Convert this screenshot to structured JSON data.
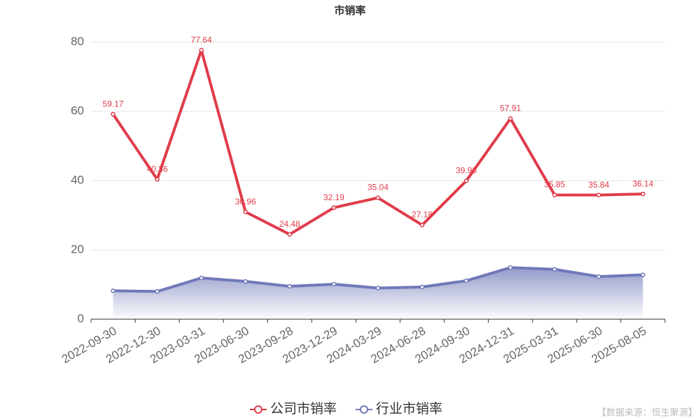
{
  "chart_data": {
    "type": "line",
    "title": "市销率",
    "categories": [
      "2022-09-30",
      "2022-12-30",
      "2023-03-31",
      "2023-06-30",
      "2023-09-28",
      "2023-12-29",
      "2024-03-29",
      "2024-06-28",
      "2024-09-30",
      "2024-12-31",
      "2025-03-31",
      "2025-06-30",
      "2025-08-05"
    ],
    "series": [
      {
        "name": "公司市销率",
        "color": "#e03c4a",
        "values": [
          59.17,
          40.36,
          77.64,
          30.96,
          24.48,
          32.19,
          35.04,
          27.18,
          39.93,
          57.91,
          35.85,
          35.84,
          36.14
        ],
        "labels": true
      },
      {
        "name": "行业市销率",
        "color": "#7079b8",
        "values": [
          8.2,
          8.0,
          11.9,
          10.9,
          9.5,
          10.1,
          9.0,
          9.3,
          11.1,
          14.9,
          14.4,
          12.3,
          12.8
        ],
        "area": true
      }
    ],
    "ylim": [
      0,
      80
    ],
    "yticks": [
      0,
      20,
      40,
      60,
      80
    ],
    "grid": true,
    "source": "【数据来源：恒生聚源】"
  }
}
